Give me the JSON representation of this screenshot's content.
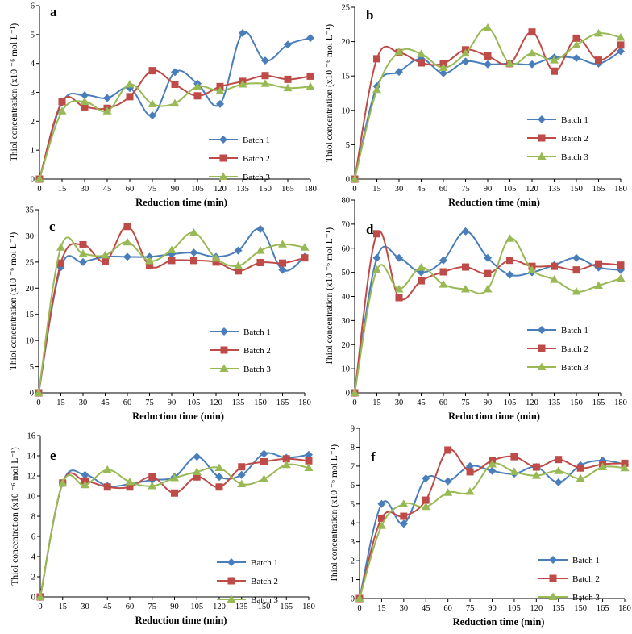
{
  "colors": {
    "batch1": "#4a7ebb",
    "batch2": "#be4b48",
    "batch3": "#98b954"
  },
  "chart_data": [
    {
      "type": "line",
      "panel": "a",
      "xlabel": "Reduction time (min)",
      "ylabel": "Thiol concentration (x10 ⁻⁶ mol L⁻¹)",
      "x": [
        0,
        15,
        30,
        45,
        60,
        75,
        90,
        105,
        120,
        135,
        150,
        165,
        180
      ],
      "ylim": [
        0,
        6
      ],
      "yticks": [
        0,
        1,
        2,
        3,
        4,
        5,
        6
      ],
      "series": [
        {
          "name": "Batch 1",
          "values": [
            0,
            2.65,
            2.9,
            2.8,
            3.15,
            2.2,
            3.7,
            3.3,
            2.6,
            5.05,
            4.1,
            4.65,
            4.88
          ]
        },
        {
          "name": "Batch 2",
          "values": [
            0,
            2.68,
            2.5,
            2.45,
            2.85,
            3.75,
            3.28,
            2.88,
            3.2,
            3.38,
            3.58,
            3.45,
            3.56
          ]
        },
        {
          "name": "Batch 3",
          "values": [
            0,
            2.35,
            2.68,
            2.35,
            3.28,
            2.6,
            2.62,
            3.2,
            3.05,
            3.28,
            3.3,
            3.15,
            3.2
          ]
        }
      ],
      "legend": [
        "Batch 1",
        "Batch 2",
        "Batch 3"
      ]
    },
    {
      "type": "line",
      "panel": "b",
      "xlabel": "Reduction time (min)",
      "ylabel": "Thiol concentration (x10 ⁻⁶ mol L⁻¹)",
      "x": [
        0,
        15,
        30,
        45,
        60,
        75,
        90,
        105,
        120,
        135,
        150,
        165,
        180
      ],
      "ylim": [
        0,
        25
      ],
      "yticks": [
        0,
        5,
        10,
        15,
        20,
        25
      ],
      "series": [
        {
          "name": "Batch 1",
          "values": [
            0,
            13.5,
            15.6,
            17.5,
            15.4,
            17.1,
            16.7,
            16.8,
            16.7,
            17.7,
            17.6,
            16.8,
            18.6
          ]
        },
        {
          "name": "Batch 2",
          "values": [
            0,
            17.5,
            18.4,
            16.9,
            16.8,
            18.8,
            17.9,
            16.8,
            21.4,
            15.7,
            20.5,
            17.3,
            19.5
          ]
        },
        {
          "name": "Batch 3",
          "values": [
            0,
            13,
            18.5,
            18.2,
            16.2,
            18.3,
            22,
            16.8,
            18.3,
            17.3,
            19.5,
            21.2,
            20.6
          ]
        }
      ],
      "legend": [
        "Batch 1",
        "Batch 2",
        "Batch 3"
      ]
    },
    {
      "type": "line",
      "panel": "c",
      "xlabel": "Reduction time (min)",
      "ylabel": "Thiol concentration (x10 ⁻⁶ mol L⁻¹)",
      "x": [
        0,
        15,
        30,
        45,
        60,
        75,
        90,
        105,
        120,
        135,
        150,
        165,
        180
      ],
      "ylim": [
        0,
        35
      ],
      "yticks": [
        0,
        5,
        10,
        15,
        20,
        25,
        30,
        35
      ],
      "series": [
        {
          "name": "Batch 1",
          "values": [
            0,
            24,
            25,
            26,
            26,
            26,
            26.5,
            26.8,
            26,
            27.2,
            31.3,
            23.5,
            26
          ]
        },
        {
          "name": "Batch 2",
          "values": [
            0,
            24.8,
            28.3,
            25.1,
            31.8,
            24.3,
            25.3,
            25.3,
            25,
            23.3,
            24.9,
            24.8,
            25.8
          ]
        },
        {
          "name": "Batch 3",
          "values": [
            0,
            27.8,
            26.6,
            26.3,
            28.8,
            25.2,
            27.3,
            30.6,
            25.7,
            24.3,
            27.2,
            28.4,
            27.8
          ]
        }
      ],
      "legend": [
        "Batch 1",
        "Batch 2",
        "Batch 3"
      ]
    },
    {
      "type": "line",
      "panel": "d",
      "xlabel": "Reduction time (min)",
      "ylabel": "Thiol concentration (x10 ⁻⁶ mol L⁻¹)",
      "x": [
        0,
        15,
        30,
        45,
        60,
        75,
        90,
        105,
        120,
        135,
        150,
        165,
        180
      ],
      "ylim": [
        0,
        80
      ],
      "yticks": [
        0,
        10,
        20,
        30,
        40,
        50,
        60,
        70,
        80
      ],
      "series": [
        {
          "name": "Batch 1",
          "values": [
            0,
            56,
            56,
            50,
            55,
            67,
            56,
            49,
            50,
            53,
            56,
            52,
            51
          ]
        },
        {
          "name": "Batch 2",
          "values": [
            0,
            66,
            39.5,
            46.5,
            50.2,
            52.2,
            49.5,
            55,
            52.5,
            52.5,
            51,
            53.5,
            53
          ]
        },
        {
          "name": "Batch 3",
          "values": [
            0,
            51,
            43,
            52,
            45,
            43,
            43,
            64,
            51,
            47,
            42,
            44.5,
            47.5
          ]
        }
      ],
      "legend": [
        "Batch 1",
        "Batch 2",
        "Batch 3"
      ]
    },
    {
      "type": "line",
      "panel": "e",
      "xlabel": "Reduction time (min)",
      "ylabel": "Thiol concentration (x10 ⁻⁶ mol L⁻¹)",
      "x": [
        0,
        15,
        30,
        45,
        60,
        75,
        90,
        105,
        120,
        135,
        150,
        165,
        180
      ],
      "ylim": [
        0,
        16
      ],
      "yticks": [
        0,
        2,
        4,
        6,
        8,
        10,
        12,
        14,
        16
      ],
      "series": [
        {
          "name": "Batch  1",
          "values": [
            0,
            11.3,
            12.1,
            11,
            11.2,
            11.6,
            11.9,
            13.9,
            11.9,
            12.1,
            14.2,
            13.8,
            14.1
          ]
        },
        {
          "name": "Batch 2",
          "values": [
            0,
            11.3,
            11.5,
            10.9,
            10.9,
            11.9,
            10.3,
            11.9,
            10.9,
            12.9,
            13.4,
            13.7,
            13.5
          ]
        },
        {
          "name": "Batch 3",
          "values": [
            0,
            11.3,
            11.1,
            12.6,
            11.4,
            11,
            11.8,
            12.4,
            12.8,
            11.2,
            11.7,
            13.1,
            12.8
          ]
        }
      ],
      "legend": [
        "Batch  1",
        "Batch 2",
        "Batch 3"
      ]
    },
    {
      "type": "line",
      "panel": "f",
      "xlabel": "Reduction time (min)",
      "ylabel": "Thiol concentration (x10 ⁻⁶ mol L⁻¹)",
      "x": [
        0,
        15,
        30,
        45,
        60,
        75,
        90,
        105,
        120,
        135,
        150,
        165,
        180
      ],
      "ylim": [
        0,
        9
      ],
      "yticks": [
        0,
        1,
        2,
        3,
        4,
        5,
        6,
        7,
        8,
        9
      ],
      "series": [
        {
          "name": "Batch  1",
          "values": [
            0,
            5,
            3.95,
            6.35,
            6.2,
            7.0,
            6.75,
            6.6,
            6.95,
            6.15,
            7.05,
            7.3,
            7.1
          ]
        },
        {
          "name": "Batch 2",
          "values": [
            0,
            4.25,
            4.35,
            5.2,
            7.85,
            6.7,
            7.3,
            7.5,
            6.95,
            7.35,
            6.9,
            7.1,
            7.15
          ]
        },
        {
          "name": "Batch 3",
          "values": [
            0,
            3.85,
            5.0,
            4.85,
            5.6,
            5.65,
            7.1,
            6.7,
            6.5,
            6.75,
            6.35,
            6.95,
            6.9
          ]
        }
      ],
      "legend": [
        "Batch  1",
        "Batch 2",
        "Batch 3"
      ]
    }
  ]
}
